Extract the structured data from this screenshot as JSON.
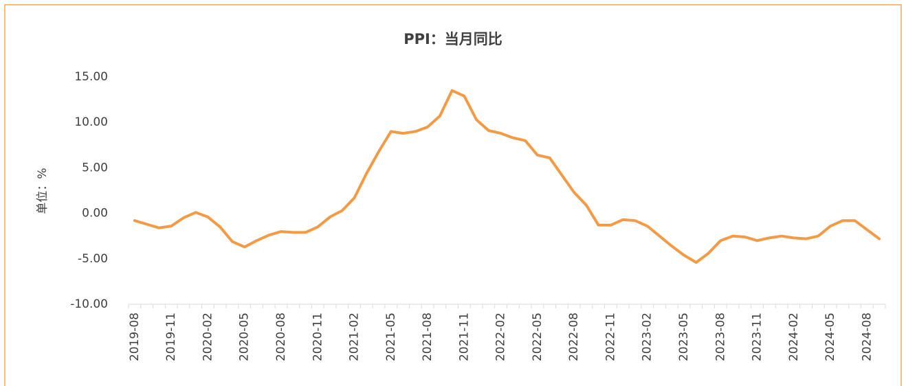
{
  "chart_data": {
    "type": "line",
    "title": "PPI：当月同比",
    "ylabel": "单位：%",
    "categories": [
      "2019-08",
      null,
      null,
      "2019-11",
      null,
      null,
      "2020-02",
      null,
      null,
      "2020-05",
      null,
      null,
      "2020-08",
      null,
      null,
      "2020-11",
      null,
      null,
      "2021-02",
      null,
      null,
      "2021-05",
      null,
      null,
      "2021-08",
      null,
      null,
      "2021-11",
      null,
      null,
      "2022-02",
      null,
      null,
      "2022-05",
      null,
      null,
      "2022-08",
      null,
      null,
      "2022-11",
      null,
      null,
      "2023-02",
      null,
      null,
      "2023-05",
      null,
      null,
      "2023-08",
      null,
      null,
      "2023-11",
      null,
      null,
      "2024-02",
      null,
      null,
      "2024-05",
      null,
      null,
      "2024-08",
      null
    ],
    "series": [
      {
        "name": "PPI：当月同比",
        "color": "#f39a45",
        "values": [
          -0.8,
          -1.2,
          -1.6,
          -1.4,
          -0.5,
          0.1,
          -0.4,
          -1.5,
          -3.1,
          -3.7,
          -3.0,
          -2.4,
          -2.0,
          -2.1,
          -2.1,
          -1.5,
          -0.4,
          0.3,
          1.7,
          4.4,
          6.8,
          9.0,
          8.8,
          9.0,
          9.5,
          10.7,
          13.5,
          12.9,
          10.3,
          9.1,
          8.8,
          8.3,
          8.0,
          6.4,
          6.1,
          4.2,
          2.3,
          0.9,
          -1.3,
          -1.3,
          -0.7,
          -0.8,
          -1.4,
          -2.5,
          -3.6,
          -4.6,
          -5.4,
          -4.4,
          -3.0,
          -2.5,
          -2.6,
          -3.0,
          -2.7,
          -2.5,
          -2.7,
          -2.8,
          -2.5,
          -1.4,
          -0.8,
          -0.8,
          -1.8,
          -2.8
        ]
      }
    ],
    "ylim": [
      -10,
      15
    ],
    "yticks": [
      {
        "value": -10,
        "label": "-10.00"
      },
      {
        "value": -5,
        "label": "-5.00"
      },
      {
        "value": 0,
        "label": "0.00"
      },
      {
        "value": 5,
        "label": "5.00"
      },
      {
        "value": 10,
        "label": "10.00"
      },
      {
        "value": 15,
        "label": "15.00"
      }
    ],
    "grid": false
  }
}
